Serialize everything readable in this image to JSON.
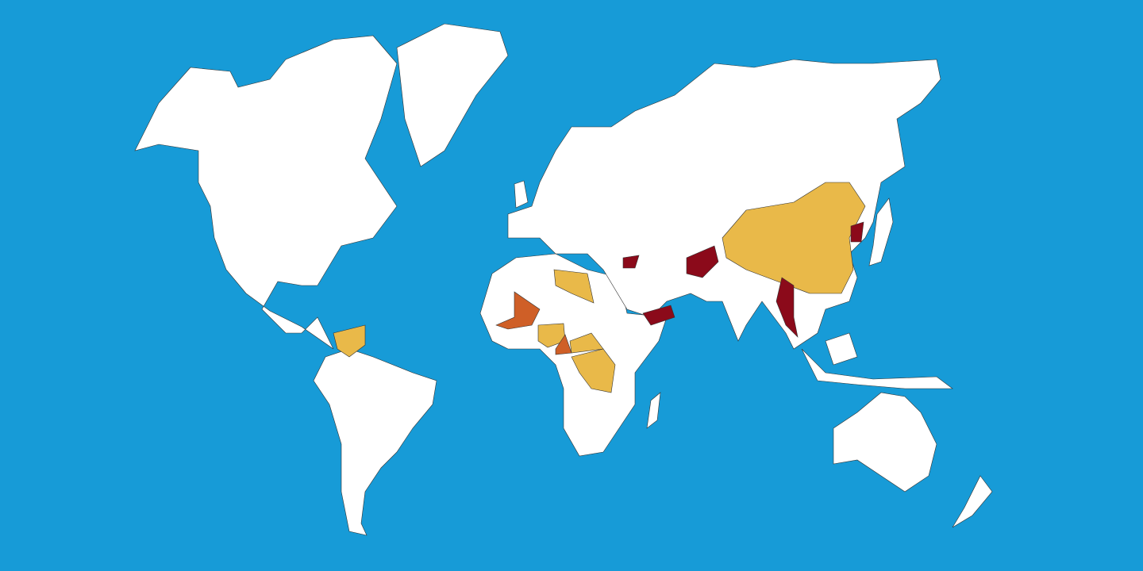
{
  "map": {
    "colors": {
      "ocean": "#179BD7",
      "land": "#FFFFFF",
      "border": "#333333",
      "category_yellow": "#E9B949",
      "category_orange": "#CF5F27",
      "category_red": "#8B0A1A"
    }
  }
}
